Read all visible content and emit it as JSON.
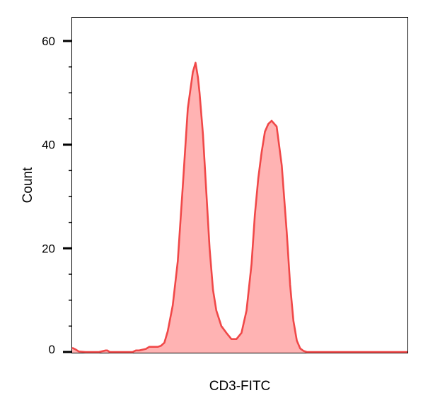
{
  "chart_data": {
    "type": "area",
    "title": "",
    "xlabel": "CD3-FITC",
    "ylabel": "Count",
    "xlim": [
      0,
      1
    ],
    "ylim": [
      0,
      60
    ],
    "grid": false,
    "legend": "none",
    "y_ticks": [
      0,
      20,
      40,
      60
    ],
    "y_tick_labels": [
      "0",
      "20",
      "40",
      "60"
    ],
    "y_minor_step": 5,
    "x_tick_labels": [],
    "colors": {
      "line": "#f04848",
      "fill": "#ffb3b3",
      "frame": "#000000"
    },
    "series": [
      {
        "x": [
          0.0,
          0.01,
          0.02,
          0.04,
          0.06,
          0.08,
          0.1,
          0.105,
          0.112,
          0.12,
          0.13,
          0.14,
          0.16,
          0.18,
          0.19,
          0.2,
          0.22,
          0.23,
          0.245,
          0.255,
          0.265,
          0.275,
          0.285,
          0.3,
          0.315,
          0.33,
          0.345,
          0.36,
          0.368,
          0.375,
          0.38,
          0.39,
          0.4,
          0.41,
          0.42,
          0.43,
          0.445,
          0.46,
          0.475,
          0.49,
          0.505,
          0.52,
          0.535,
          0.545,
          0.555,
          0.565,
          0.575,
          0.585,
          0.595,
          0.61,
          0.625,
          0.64,
          0.65,
          0.66,
          0.67,
          0.68,
          0.69,
          0.7,
          0.71,
          0.72,
          0.735,
          0.75,
          0.78,
          0.82,
          0.88,
          0.94,
          1.0
        ],
        "values": [
          0.8,
          0.5,
          0.1,
          0.0,
          0.0,
          0.0,
          0.3,
          0.3,
          0.0,
          0.0,
          0.0,
          0.0,
          0.0,
          0.0,
          0.3,
          0.3,
          0.6,
          1.0,
          1.0,
          1.0,
          1.2,
          1.8,
          4.0,
          9.0,
          17.5,
          32.0,
          47.0,
          54.0,
          55.8,
          53.0,
          50.0,
          42.0,
          31.0,
          20.0,
          12.0,
          8.0,
          5.0,
          3.7,
          2.5,
          2.5,
          3.7,
          8.0,
          17.0,
          26.5,
          33.5,
          38.5,
          42.5,
          44.0,
          44.6,
          43.5,
          36.0,
          23.0,
          13.0,
          6.0,
          2.2,
          0.7,
          0.2,
          0.0,
          0.0,
          0.0,
          0.0,
          0.0,
          0.0,
          0.0,
          0.0,
          0.0,
          0.0
        ]
      }
    ]
  }
}
